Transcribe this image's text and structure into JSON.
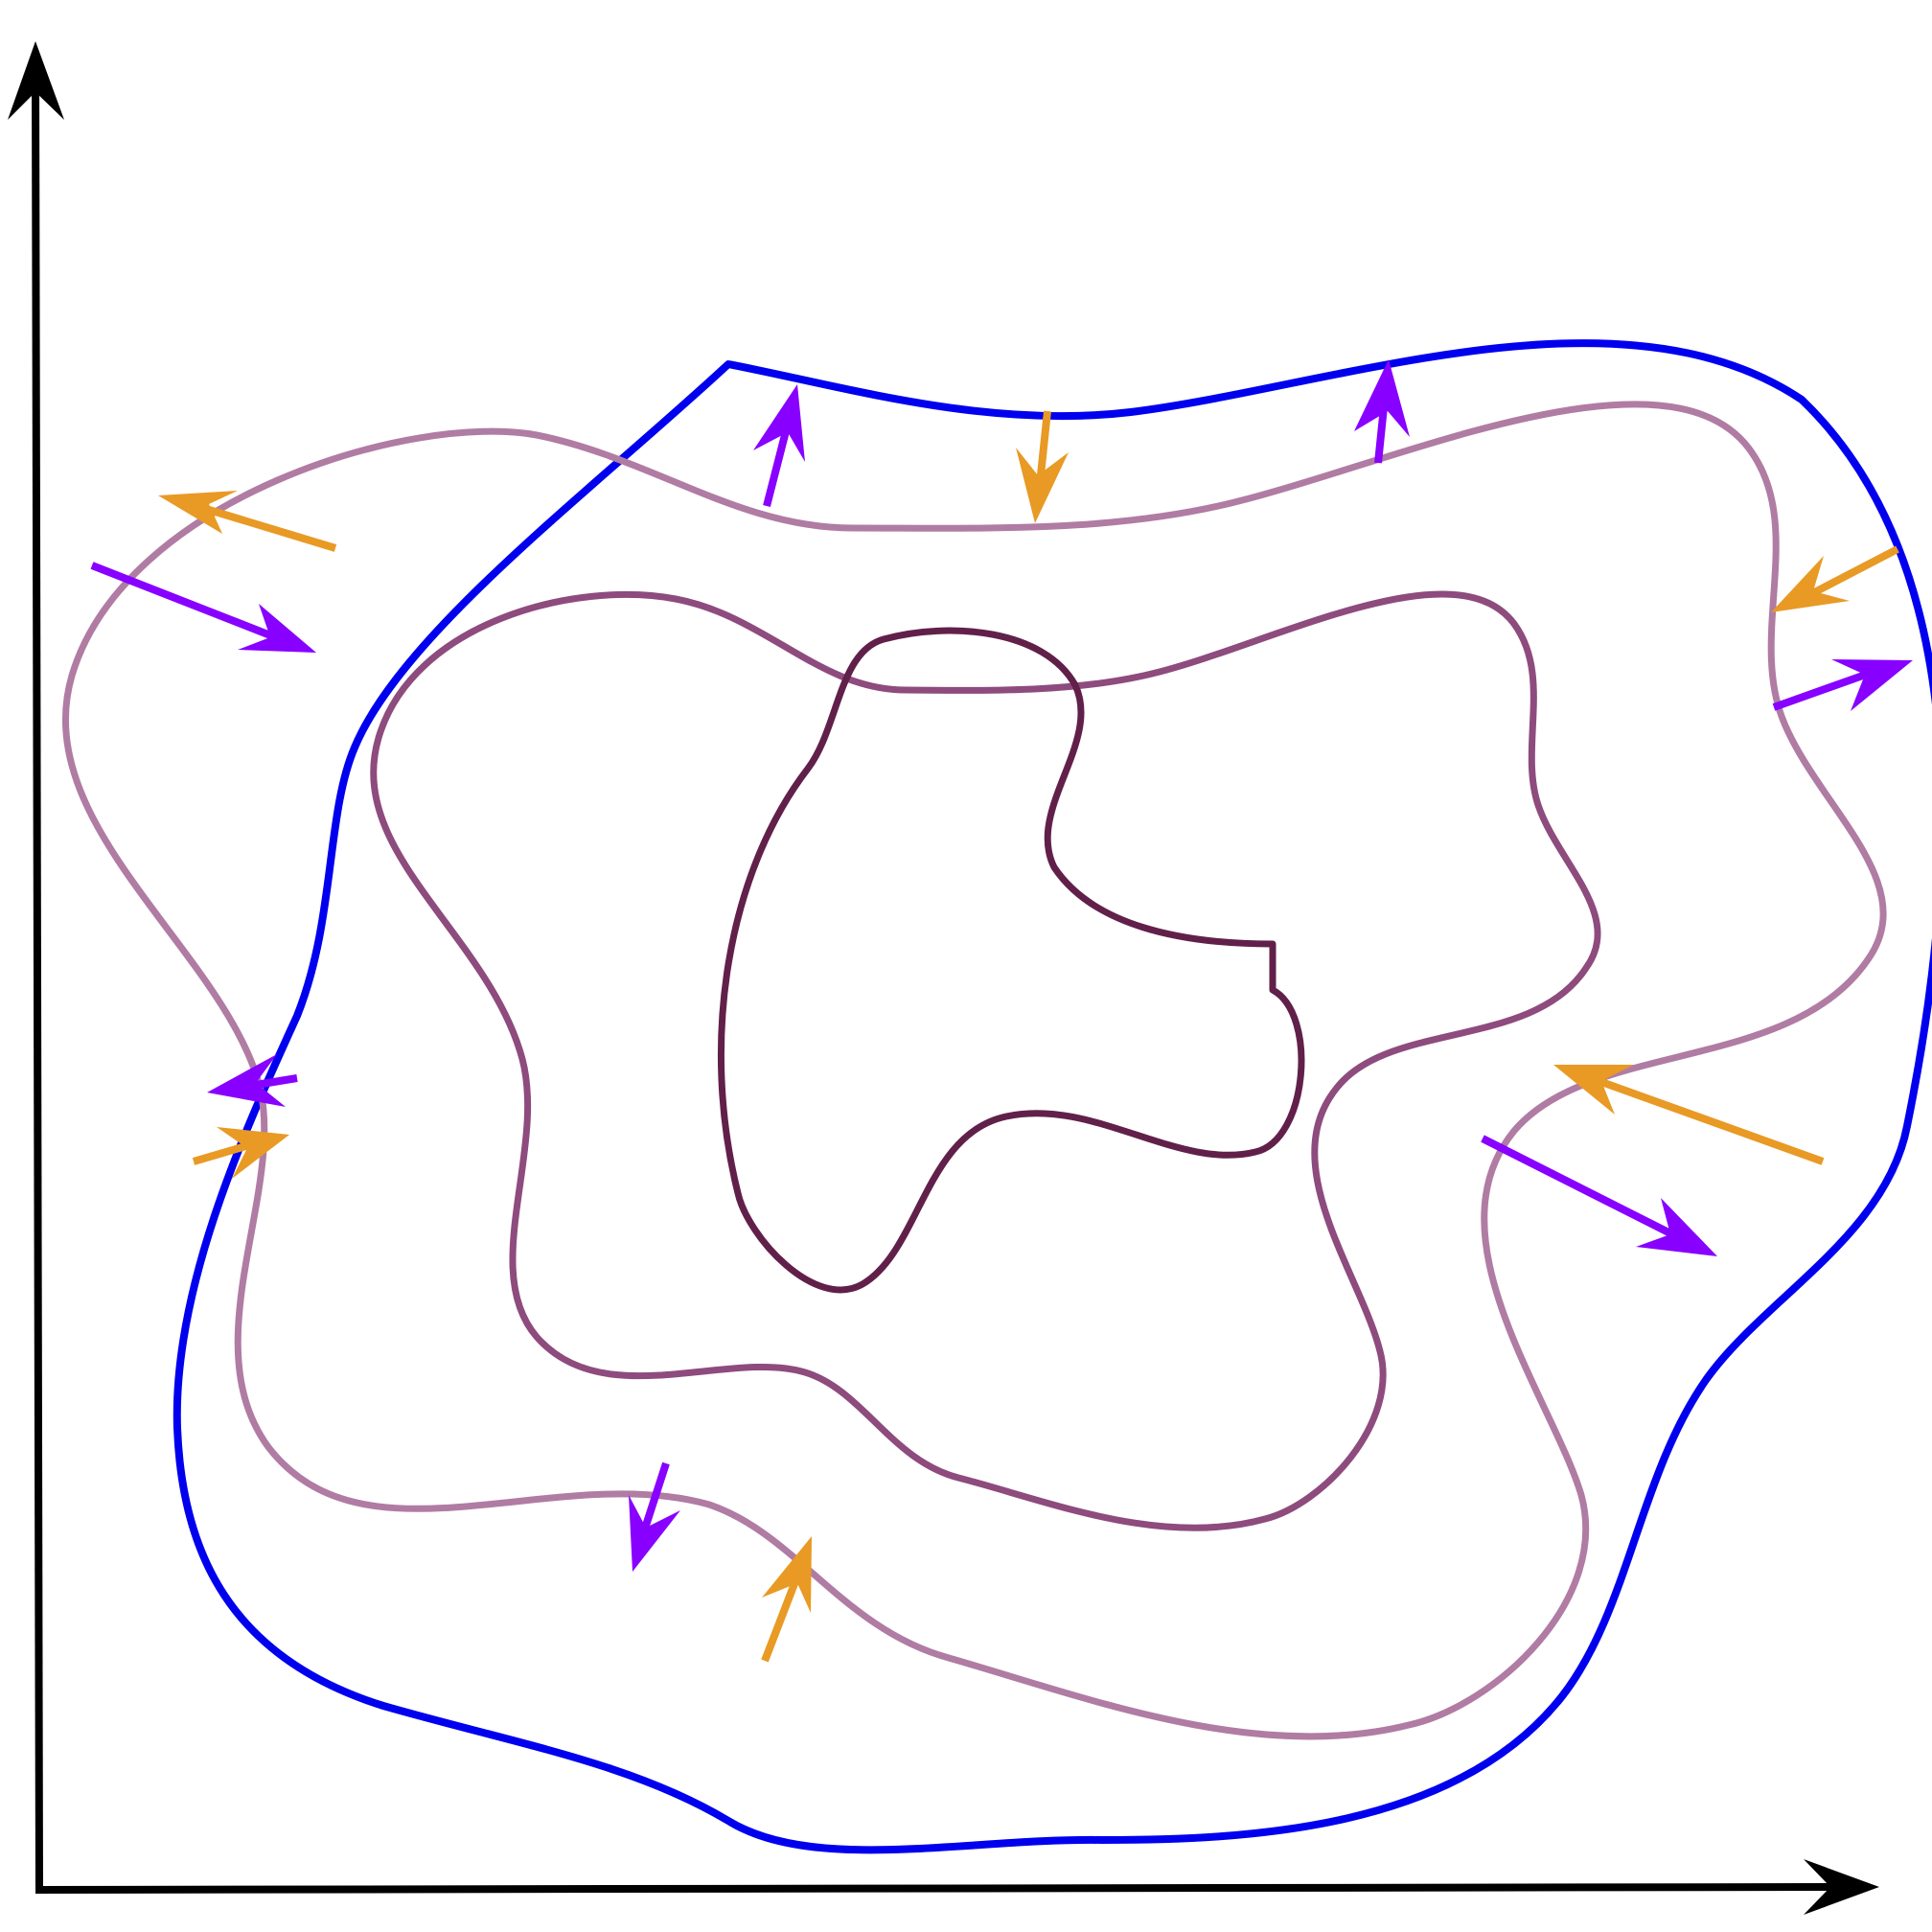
{
  "diagram": {
    "axes": {
      "x_axis": {
        "label": "",
        "color": "#000000"
      },
      "y_axis": {
        "label": "",
        "color": "#000000"
      }
    },
    "colors": {
      "outer_contour": "#0000ee",
      "contour_1": "#b07ca3",
      "contour_2": "#8e4b7d",
      "contour_3": "#612049",
      "arrow_violet": "#8800ff",
      "arrow_orange": "#e89a25"
    },
    "contours": [
      {
        "name": "outer-blue-contour",
        "color_key": "outer_contour",
        "style": "smooth closed blob"
      },
      {
        "name": "light-mauve-contour",
        "color_key": "contour_1",
        "style": "smooth closed blob"
      },
      {
        "name": "mauve-contour",
        "color_key": "contour_2",
        "style": "smooth closed blob"
      },
      {
        "name": "dark-plum-contour",
        "color_key": "contour_3",
        "style": "smooth closed blob"
      }
    ],
    "arrow_pairs": [
      {
        "location": "upper-left",
        "violet_direction": "outward-to-inward",
        "orange_direction": "outward"
      },
      {
        "location": "top-center-left",
        "violet_direction": "outward",
        "orange_direction": "inward"
      },
      {
        "location": "top-right",
        "violet_direction": "outward",
        "orange_direction": "inward"
      },
      {
        "location": "right",
        "violet_direction": "outward",
        "orange_direction": "inward"
      },
      {
        "location": "lower-right",
        "violet_direction": "outward",
        "orange_direction": "inward"
      },
      {
        "location": "bottom-center",
        "violet_direction": "outward",
        "orange_direction": "inward"
      },
      {
        "location": "left",
        "violet_direction": "outward",
        "orange_direction": "inward"
      }
    ]
  }
}
